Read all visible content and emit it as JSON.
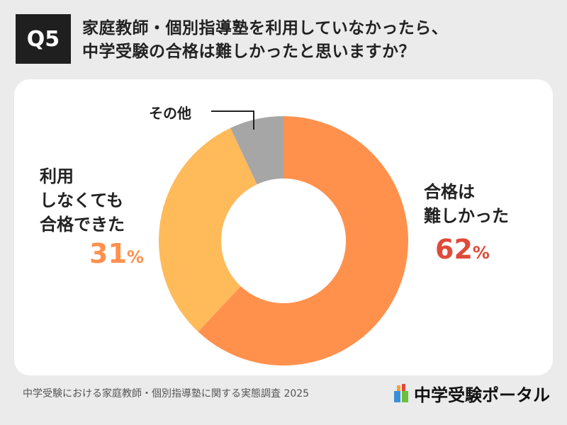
{
  "header": {
    "badge": "Q5",
    "title_line1": "家庭教師・個別指導塾を利用していなかったら、",
    "title_line2": "中学受験の合格は難しかったと思いますか？"
  },
  "chart_data": {
    "type": "pie",
    "donut": true,
    "categories": [
      "合格は難しかった",
      "利用しなくても合格できた",
      "その他"
    ],
    "values": [
      62,
      31,
      7
    ],
    "colors": [
      "#FF914D",
      "#FFBA5A",
      "#A6A6A6"
    ],
    "labels": {
      "a_line1": "合格は",
      "a_line2": "難しかった",
      "a_pct": "62",
      "b_line1": "利用",
      "b_line2": "しなくても",
      "b_line3": "合格できた",
      "b_pct": "31",
      "c": "その他",
      "unit": "%"
    },
    "label_colors": {
      "a": "#E04A3A",
      "b": "#FF914D"
    }
  },
  "footer": {
    "source": "中学受験における家庭教師・個別指導塾に関する実態調査 2025",
    "logo": "中学受験ポータル"
  }
}
